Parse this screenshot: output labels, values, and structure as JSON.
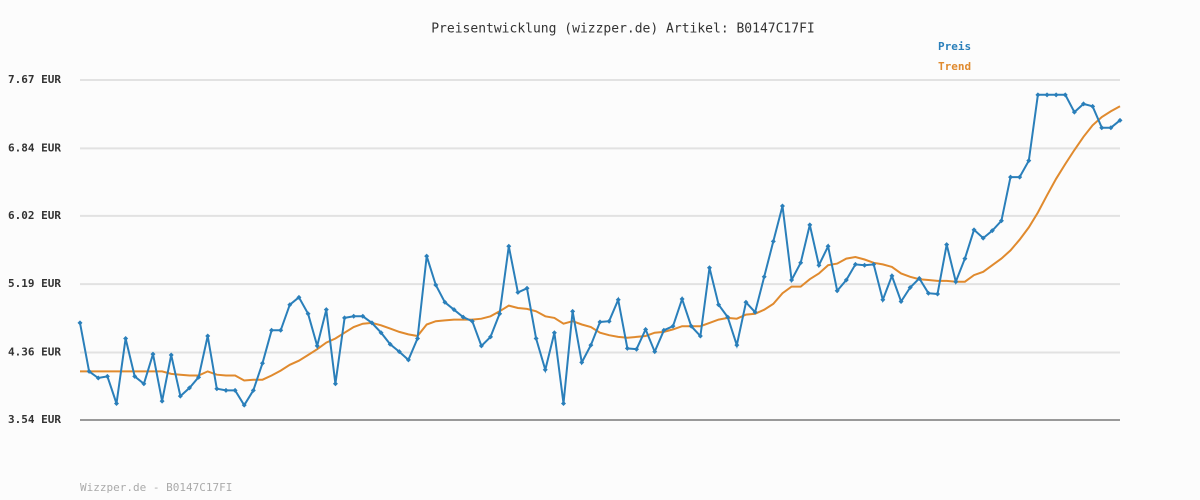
{
  "chart_data": {
    "type": "line",
    "title": "Preisentwicklung (wizzper.de) Artikel: B0147C17FI",
    "footer": "Wizzper.de - B0147C17FI",
    "ylim": [
      3.54,
      7.67
    ],
    "yticks": [
      {
        "value": 3.54,
        "label": "3.54 EUR"
      },
      {
        "value": 4.36,
        "label": "4.36 EUR"
      },
      {
        "value": 5.19,
        "label": "5.19 EUR"
      },
      {
        "value": 6.02,
        "label": "6.02 EUR"
      },
      {
        "value": 6.84,
        "label": "6.84 EUR"
      },
      {
        "value": 7.67,
        "label": "7.67 EUR"
      }
    ],
    "grid": true,
    "legend": "top-right",
    "series": [
      {
        "name": "Preis",
        "color": "#2a7fba",
        "markers": true,
        "values": [
          4.72,
          4.13,
          4.05,
          4.07,
          3.74,
          4.53,
          4.07,
          3.98,
          4.34,
          3.77,
          4.33,
          3.83,
          3.93,
          4.06,
          4.56,
          3.92,
          3.9,
          3.9,
          3.72,
          3.9,
          4.23,
          4.63,
          4.63,
          4.94,
          5.03,
          4.83,
          4.44,
          4.88,
          3.98,
          4.78,
          4.8,
          4.8,
          4.72,
          4.6,
          4.46,
          4.37,
          4.27,
          4.53,
          5.53,
          5.18,
          4.97,
          4.88,
          4.79,
          4.74,
          4.44,
          4.55,
          4.83,
          5.65,
          5.09,
          5.14,
          4.53,
          4.15,
          4.6,
          3.74,
          4.86,
          4.24,
          4.45,
          4.73,
          4.74,
          5.0,
          4.41,
          4.4,
          4.64,
          4.37,
          4.63,
          4.68,
          5.01,
          4.68,
          4.56,
          5.39,
          4.94,
          4.79,
          4.45,
          4.97,
          4.85,
          5.28,
          5.71,
          6.14,
          5.24,
          5.45,
          5.91,
          5.42,
          5.65,
          5.11,
          5.24,
          5.43,
          5.42,
          5.43,
          5.0,
          5.29,
          4.98,
          5.15,
          5.26,
          5.08,
          5.07,
          5.67,
          5.22,
          5.5,
          5.85,
          5.75,
          5.84,
          5.96,
          6.49,
          6.49,
          6.69,
          7.49,
          7.49,
          7.49,
          7.49,
          7.28,
          7.38,
          7.35,
          7.09,
          7.09,
          7.18
        ]
      },
      {
        "name": "Trend",
        "color": "#e08a2e",
        "markers": false,
        "values": [
          4.13,
          4.13,
          4.13,
          4.13,
          4.13,
          4.13,
          4.13,
          4.13,
          4.13,
          4.13,
          4.1,
          4.09,
          4.08,
          4.08,
          4.13,
          4.09,
          4.08,
          4.08,
          4.02,
          4.03,
          4.03,
          4.08,
          4.14,
          4.21,
          4.26,
          4.33,
          4.4,
          4.48,
          4.53,
          4.6,
          4.67,
          4.71,
          4.72,
          4.69,
          4.65,
          4.61,
          4.58,
          4.56,
          4.7,
          4.74,
          4.75,
          4.76,
          4.76,
          4.76,
          4.77,
          4.8,
          4.86,
          4.93,
          4.9,
          4.89,
          4.86,
          4.8,
          4.78,
          4.71,
          4.74,
          4.7,
          4.67,
          4.6,
          4.57,
          4.55,
          4.54,
          4.55,
          4.56,
          4.6,
          4.61,
          4.64,
          4.68,
          4.68,
          4.68,
          4.72,
          4.76,
          4.78,
          4.77,
          4.82,
          4.83,
          4.88,
          4.95,
          5.08,
          5.16,
          5.16,
          5.25,
          5.32,
          5.42,
          5.44,
          5.5,
          5.52,
          5.49,
          5.45,
          5.43,
          5.4,
          5.32,
          5.28,
          5.25,
          5.24,
          5.23,
          5.23,
          5.22,
          5.22,
          5.3,
          5.34,
          5.42,
          5.5,
          5.6,
          5.73,
          5.88,
          6.06,
          6.27,
          6.47,
          6.65,
          6.82,
          6.98,
          7.12,
          7.22,
          7.29,
          7.35
        ]
      }
    ]
  }
}
